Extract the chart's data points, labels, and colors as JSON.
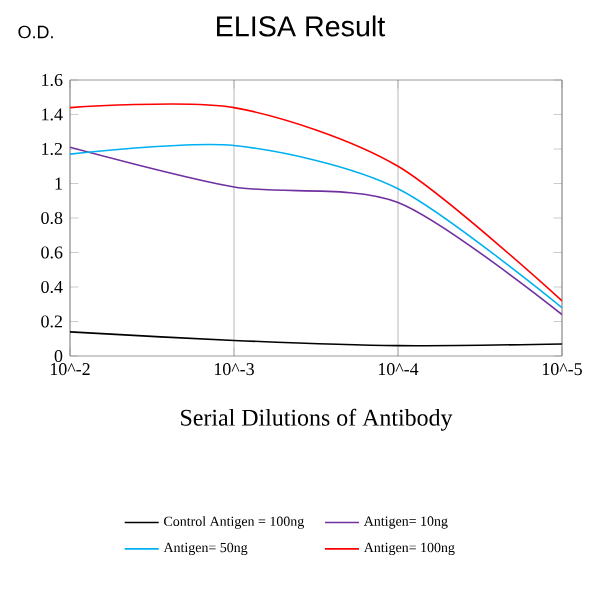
{
  "chart_data": {
    "type": "line",
    "title": "ELISA Result",
    "ylabel": "O.D.",
    "xlabel": "Serial Dilutions of Antibody",
    "x": [
      0.01,
      0.001,
      0.0001,
      1e-05
    ],
    "log": "x",
    "xlim": [
      0.01,
      1e-05
    ],
    "xticks": [
      {
        "value": 0.01,
        "label": "10^-2"
      },
      {
        "value": 0.001,
        "label": "10^-3"
      },
      {
        "value": 0.0001,
        "label": "10^-4"
      },
      {
        "value": 1e-05,
        "label": "10^-5"
      }
    ],
    "ylim": [
      0,
      1.6
    ],
    "yticks": [
      0,
      0.2,
      0.4,
      0.6,
      0.8,
      1,
      1.2,
      1.4,
      1.6
    ],
    "grid": "x",
    "legend": "bottom",
    "marker": "none",
    "line_style": "solid",
    "series": [
      {
        "name": "Control Antigen = 100ng",
        "color": "#000000",
        "values": [
          0.14,
          0.09,
          0.06,
          0.07
        ]
      },
      {
        "name": "Antigen= 10ng",
        "color": "#7030a0",
        "values": [
          1.21,
          0.98,
          0.89,
          0.24
        ]
      },
      {
        "name": "Antigen= 50ng",
        "color": "#00b0f0",
        "values": [
          1.17,
          1.22,
          0.97,
          0.28
        ]
      },
      {
        "name": "Antigen= 100ng",
        "color": "#ff0000",
        "values": [
          1.44,
          1.44,
          1.1,
          0.32
        ]
      }
    ]
  }
}
